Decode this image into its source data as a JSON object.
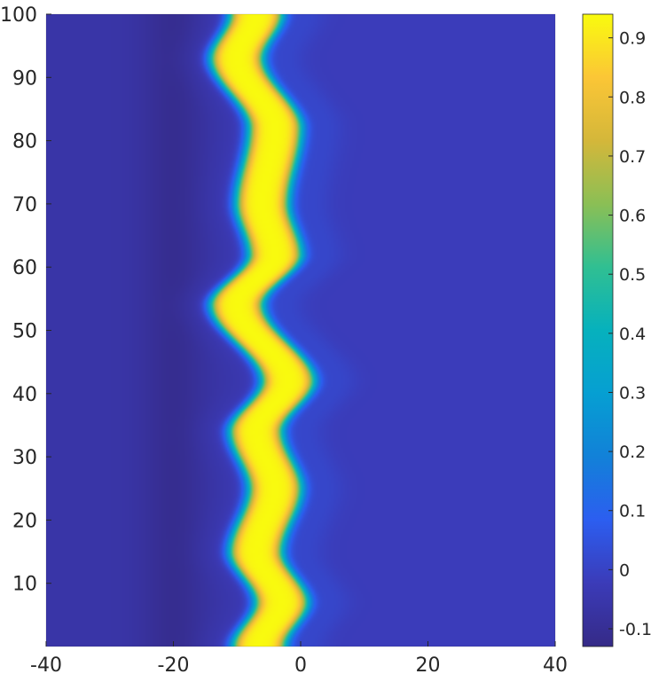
{
  "chart_data": {
    "type": "heatmap",
    "title": "",
    "xlabel": "",
    "ylabel": "",
    "xlim": [
      -40,
      40
    ],
    "ylim": [
      0,
      100
    ],
    "x_ticks": [
      -40,
      -20,
      0,
      20,
      40
    ],
    "y_ticks": [
      10,
      20,
      30,
      40,
      50,
      60,
      70,
      80,
      90,
      100
    ],
    "x_tick_labels": [
      "-40",
      "-20",
      "0",
      "20",
      "40"
    ],
    "y_tick_labels": [
      "10",
      "20",
      "30",
      "40",
      "50",
      "60",
      "70",
      "80",
      "90",
      "100"
    ],
    "colormap": "parula",
    "colorbar": {
      "range": [
        -0.13,
        0.94
      ],
      "ticks": [
        -0.1,
        0,
        0.1,
        0.2,
        0.3,
        0.4,
        0.5,
        0.6,
        0.7,
        0.8,
        0.9
      ],
      "tick_labels": [
        "-0.1",
        "0",
        "0.1",
        "0.2",
        "0.3",
        "0.4",
        "0.5",
        "0.6",
        "0.7",
        "0.8",
        "0.9"
      ]
    },
    "grid": false,
    "description_values": {
      "front_center_x": [
        {
          "y": 0,
          "x": -6.5
        },
        {
          "y": 7,
          "x": -3
        },
        {
          "y": 15,
          "x": -7
        },
        {
          "y": 25,
          "x": -4
        },
        {
          "y": 34,
          "x": -7
        },
        {
          "y": 42,
          "x": -2
        },
        {
          "y": 54,
          "x": -10
        },
        {
          "y": 62,
          "x": -4
        },
        {
          "y": 70,
          "x": -6
        },
        {
          "y": 82,
          "x": -4
        },
        {
          "y": 93,
          "x": -10
        },
        {
          "y": 100,
          "x": -7
        }
      ],
      "band_halfwidth": 4,
      "peak_value": 0.94,
      "background_right": -0.02,
      "background_left": -0.06,
      "trough_value": -0.11,
      "trough_x": -20
    }
  }
}
